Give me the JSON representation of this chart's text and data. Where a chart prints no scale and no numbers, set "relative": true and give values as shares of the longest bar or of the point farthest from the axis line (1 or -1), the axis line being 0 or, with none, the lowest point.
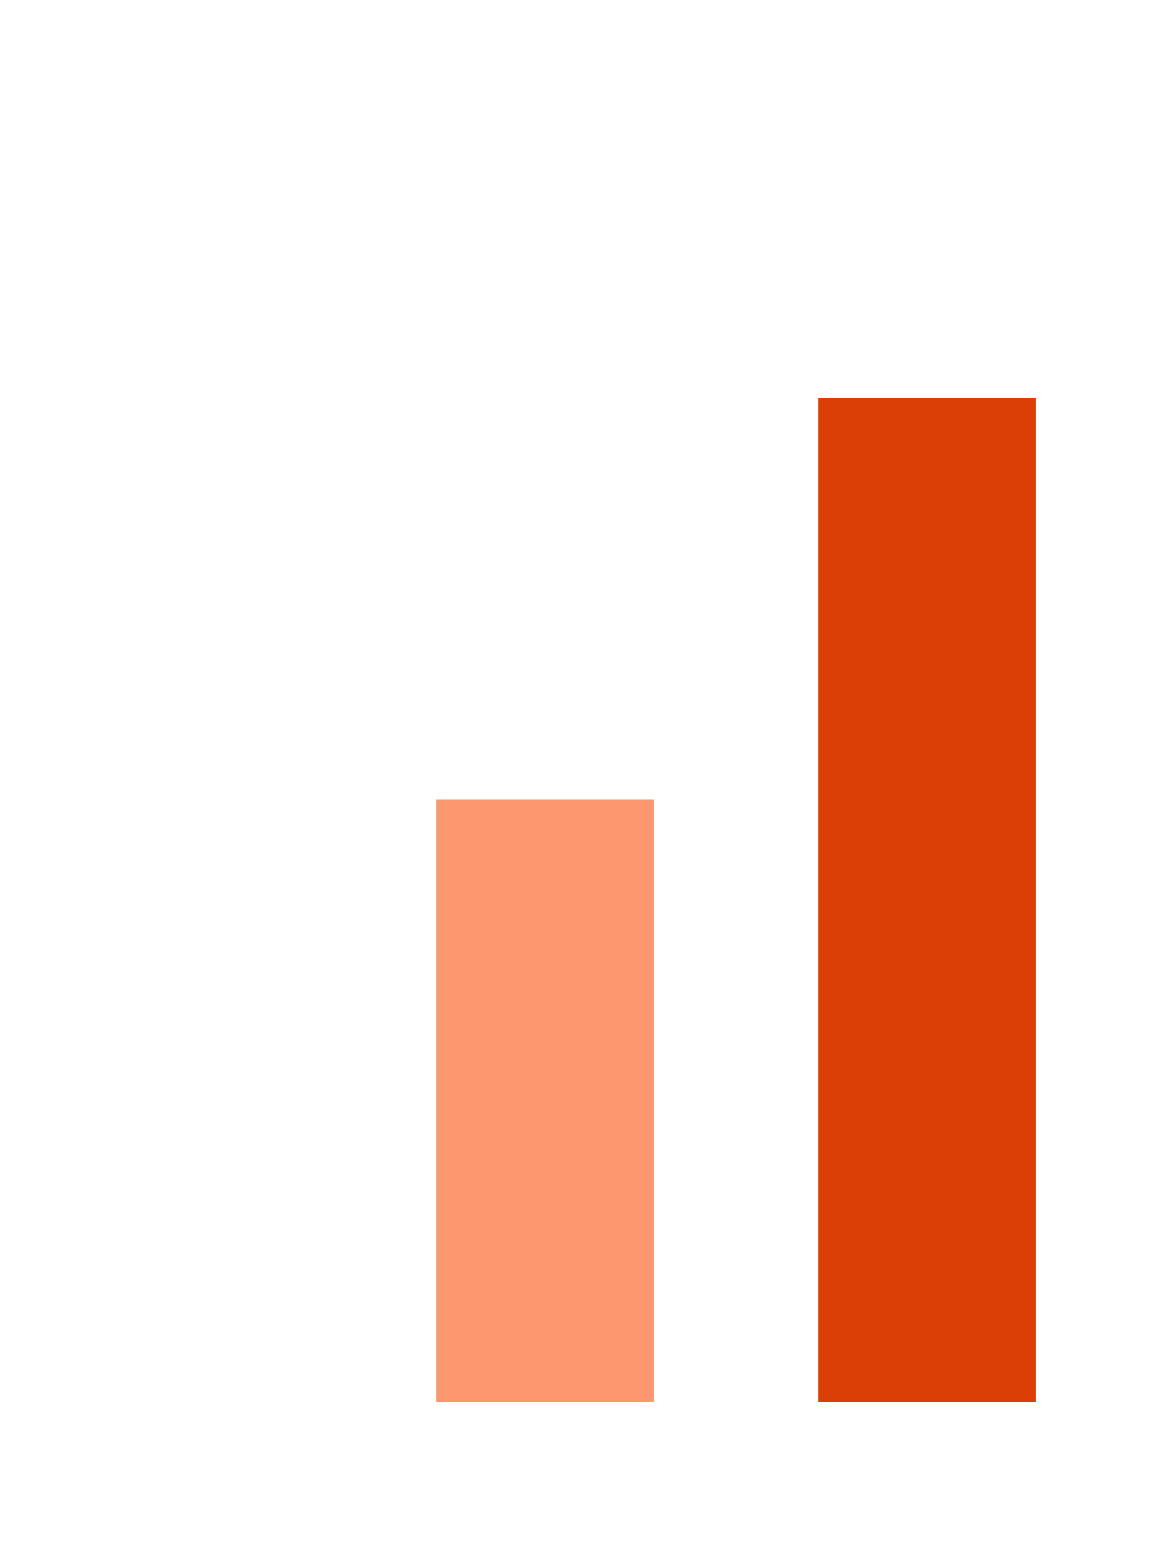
{
  "chart_data": {
    "type": "bar",
    "relative": true,
    "categories": [
      null,
      null
    ],
    "values": [
      0.6,
      1
    ],
    "colors": [
      "#fc9870",
      "#dc3f05"
    ]
  }
}
